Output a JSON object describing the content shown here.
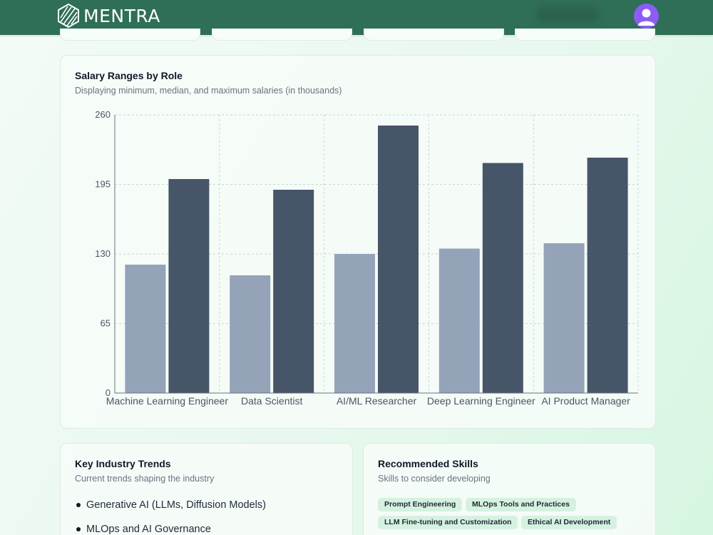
{
  "header": {
    "brand": "MENTRA",
    "colors": {
      "bar": "#2f6e57",
      "avatar": "#8b5cf6"
    },
    "icons": {
      "logo": "striped-hexagon-logo",
      "avatar": "user-avatar-icon"
    }
  },
  "salary_card": {
    "title": "Salary Ranges by Role",
    "subtitle": "Displaying minimum, median, and maximum salaries (in thousands)"
  },
  "chart_data": {
    "type": "bar",
    "title": "Salary Ranges by Role",
    "subtitle": "Displaying minimum, median, and maximum salaries (in thousands)",
    "categories": [
      "Machine Learning Engineer",
      "Data Scientist",
      "AI/ML Researcher",
      "Deep Learning Engineer",
      "AI Product Manager"
    ],
    "series": [
      {
        "values": [
          120,
          110,
          130,
          135,
          140
        ],
        "color": "#94a3b8"
      },
      {
        "values": [
          200,
          190,
          250,
          215,
          220
        ],
        "color": "#475569"
      }
    ],
    "ylim": [
      0,
      260
    ],
    "yticks": [
      0,
      65,
      130,
      195,
      260
    ],
    "grid": true
  },
  "trends_card": {
    "title": "Key Industry Trends",
    "subtitle": "Current trends shaping the industry",
    "items": [
      "Generative AI (LLMs, Diffusion Models)",
      "MLOps and AI Governance"
    ]
  },
  "skills_card": {
    "title": "Recommended Skills",
    "subtitle": "Skills to consider developing",
    "skills": [
      "Prompt Engineering",
      "MLOps Tools and Practices",
      "LLM Fine-tuning and Customization",
      "Ethical AI Development"
    ]
  }
}
